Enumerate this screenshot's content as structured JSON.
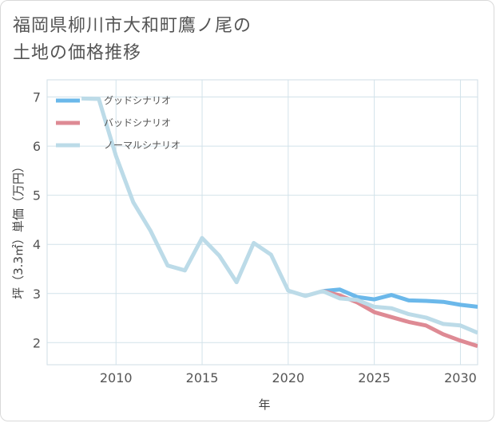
{
  "title": {
    "line1": "福岡県柳川市大和町鷹ノ尾の",
    "line2": "土地の価格推移"
  },
  "chart_data": {
    "type": "line",
    "xlabel": "年",
    "ylabel": "坪（3.3㎡）単価（万円）",
    "xlim": [
      2006,
      2031
    ],
    "ylim": [
      1.55,
      7.35
    ],
    "xticks": [
      2010,
      2015,
      2020,
      2025,
      2030
    ],
    "yticks": [
      2,
      3,
      4,
      5,
      6,
      7
    ],
    "grid": true,
    "legend_position": "top-left",
    "series": [
      {
        "name": "グッドシナリオ",
        "color": "#6bb8ea",
        "x": [
          2022,
          2023,
          2024,
          2025,
          2026,
          2027,
          2028,
          2029,
          2030,
          2031
        ],
        "y": [
          3.05,
          3.08,
          2.93,
          2.88,
          2.97,
          2.86,
          2.85,
          2.83,
          2.77,
          2.73
        ]
      },
      {
        "name": "バッドシナリオ",
        "color": "#de8a94",
        "x": [
          2022,
          2023,
          2024,
          2025,
          2026,
          2027,
          2028,
          2029,
          2030,
          2031
        ],
        "y": [
          3.05,
          2.96,
          2.82,
          2.62,
          2.52,
          2.42,
          2.35,
          2.17,
          2.04,
          1.93
        ]
      },
      {
        "name": "ノーマルシナリオ",
        "color": "#bcdbe8",
        "x": [
          2008,
          2009,
          2010,
          2011,
          2012,
          2013,
          2014,
          2015,
          2016,
          2017,
          2018,
          2019,
          2020,
          2021,
          2022,
          2023,
          2024,
          2025,
          2026,
          2027,
          2028,
          2029,
          2030,
          2031
        ],
        "y": [
          6.97,
          6.96,
          5.8,
          4.86,
          4.28,
          3.57,
          3.47,
          4.13,
          3.77,
          3.23,
          4.03,
          3.79,
          3.06,
          2.95,
          3.05,
          2.9,
          2.87,
          2.73,
          2.7,
          2.58,
          2.51,
          2.38,
          2.35,
          2.2
        ]
      }
    ]
  }
}
